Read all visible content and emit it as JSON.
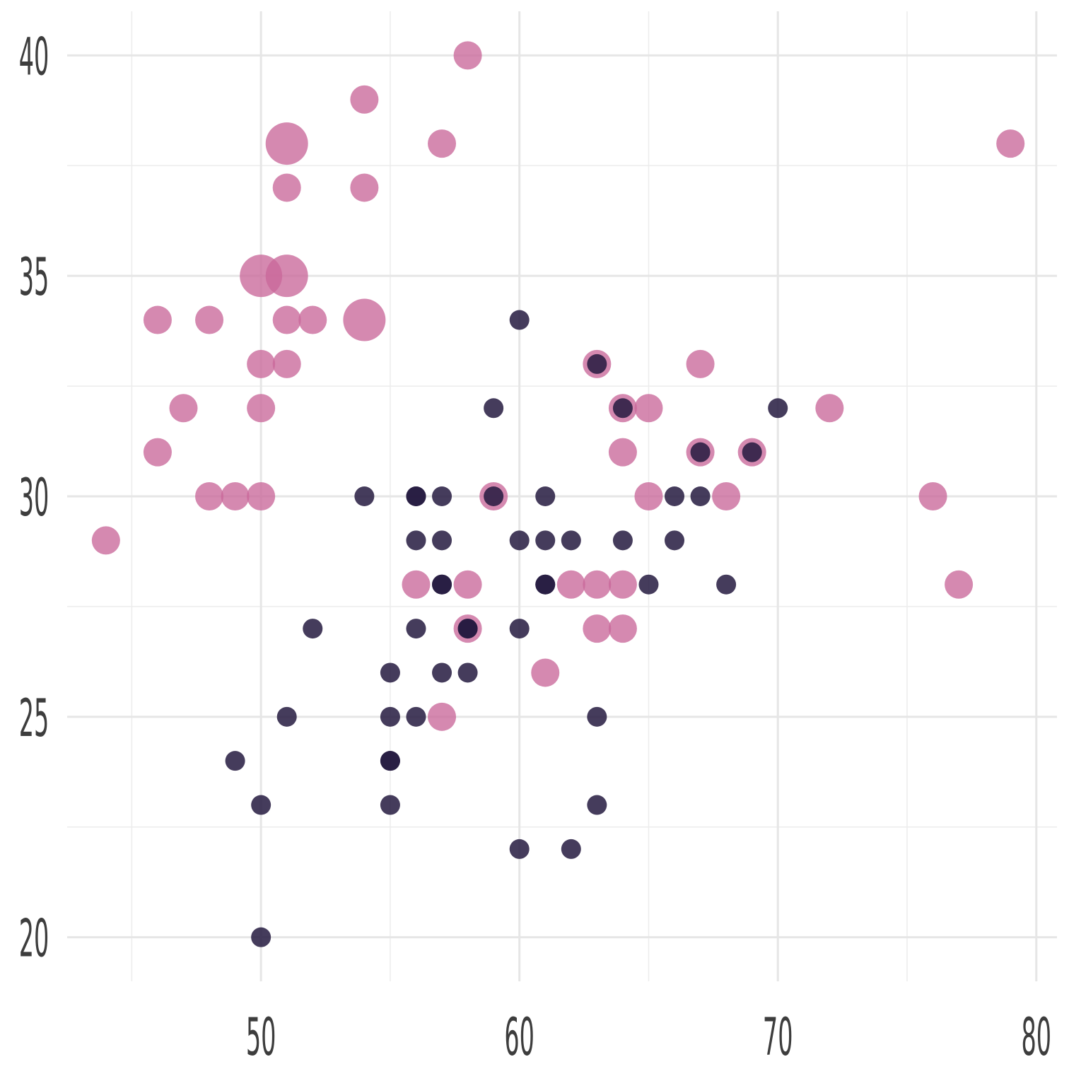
{
  "chart_data": {
    "type": "scatter",
    "title": "",
    "xlabel": "",
    "ylabel": "",
    "xlim": [
      42.5,
      80.8
    ],
    "ylim": [
      19,
      41
    ],
    "x_ticks": [
      50,
      60,
      70,
      80
    ],
    "y_ticks": [
      20,
      25,
      30,
      35,
      40
    ],
    "x_tick_labels": [
      "50",
      "60",
      "70",
      "80"
    ],
    "y_tick_labels": [
      "20",
      "25",
      "30",
      "35",
      "40"
    ],
    "grid": true,
    "legend": "none",
    "colors": {
      "pink": "#c9689a",
      "dark": "#251a40"
    },
    "series": [
      {
        "color": "#c9689a",
        "size_units": "relative",
        "points": [
          [
            58,
            40,
            1
          ],
          [
            54,
            39,
            1
          ],
          [
            51,
            38,
            1.5
          ],
          [
            57,
            38,
            1
          ],
          [
            79,
            38,
            1
          ],
          [
            51,
            37,
            1
          ],
          [
            54,
            37,
            1
          ],
          [
            50,
            35,
            1.5
          ],
          [
            51,
            35,
            1.5
          ],
          [
            46,
            34,
            1
          ],
          [
            48,
            34,
            1
          ],
          [
            51,
            34,
            1
          ],
          [
            52,
            34,
            1
          ],
          [
            54,
            34,
            1.5
          ],
          [
            50,
            33,
            1
          ],
          [
            51,
            33,
            1
          ],
          [
            63,
            33,
            1
          ],
          [
            67,
            33,
            1
          ],
          [
            47,
            32,
            1
          ],
          [
            50,
            32,
            1
          ],
          [
            64,
            32,
            1
          ],
          [
            65,
            32,
            1
          ],
          [
            72,
            32,
            1
          ],
          [
            46,
            31,
            1
          ],
          [
            64,
            31,
            1
          ],
          [
            67,
            31,
            1
          ],
          [
            69,
            31,
            1
          ],
          [
            48,
            30,
            1
          ],
          [
            49,
            30,
            1
          ],
          [
            50,
            30,
            1
          ],
          [
            59,
            30,
            1
          ],
          [
            65,
            30,
            1
          ],
          [
            68,
            30,
            1
          ],
          [
            76,
            30,
            1
          ],
          [
            44,
            29,
            1
          ],
          [
            56,
            28,
            1
          ],
          [
            58,
            28,
            1
          ],
          [
            62,
            28,
            1
          ],
          [
            63,
            28,
            1
          ],
          [
            64,
            28,
            1
          ],
          [
            77,
            28,
            1
          ],
          [
            58,
            27,
            1
          ],
          [
            63,
            27,
            1
          ],
          [
            64,
            27,
            1
          ],
          [
            61,
            26,
            1
          ],
          [
            57,
            25,
            1
          ]
        ]
      },
      {
        "color": "#251a40",
        "size_units": "relative",
        "points": [
          [
            60,
            34,
            0.7
          ],
          [
            59,
            32,
            0.7
          ],
          [
            70,
            32,
            0.7
          ],
          [
            54,
            30,
            0.7
          ],
          [
            56,
            30,
            0.7
          ],
          [
            56,
            30,
            0.7
          ],
          [
            57,
            30,
            0.7
          ],
          [
            59,
            30,
            0.7
          ],
          [
            61,
            30,
            0.7
          ],
          [
            66,
            30,
            0.7
          ],
          [
            67,
            30,
            0.7
          ],
          [
            56,
            29,
            0.7
          ],
          [
            57,
            29,
            0.7
          ],
          [
            60,
            29,
            0.7
          ],
          [
            61,
            29,
            0.7
          ],
          [
            62,
            29,
            0.7
          ],
          [
            64,
            29,
            0.7
          ],
          [
            66,
            29,
            0.7
          ],
          [
            57,
            28,
            0.7
          ],
          [
            57,
            28,
            0.7
          ],
          [
            61,
            28,
            0.7
          ],
          [
            61,
            28,
            0.7
          ],
          [
            65,
            28,
            0.7
          ],
          [
            68,
            28,
            0.7
          ],
          [
            52,
            27,
            0.7
          ],
          [
            56,
            27,
            0.7
          ],
          [
            58,
            27,
            0.7
          ],
          [
            60,
            27,
            0.7
          ],
          [
            55,
            26,
            0.7
          ],
          [
            57,
            26,
            0.7
          ],
          [
            58,
            26,
            0.7
          ],
          [
            51,
            25,
            0.7
          ],
          [
            55,
            25,
            0.7
          ],
          [
            56,
            25,
            0.7
          ],
          [
            63,
            25,
            0.7
          ],
          [
            49,
            24,
            0.7
          ],
          [
            55,
            24,
            0.7
          ],
          [
            55,
            24,
            0.7
          ],
          [
            50,
            23,
            0.7
          ],
          [
            55,
            23,
            0.7
          ],
          [
            63,
            23,
            0.7
          ],
          [
            60,
            22,
            0.7
          ],
          [
            62,
            22,
            0.7
          ],
          [
            50,
            20,
            0.7
          ],
          [
            63,
            33,
            0.7
          ],
          [
            64,
            32,
            0.7
          ],
          [
            67,
            31,
            0.7
          ],
          [
            69,
            31,
            0.7
          ],
          [
            58,
            27,
            0.7
          ]
        ]
      }
    ]
  }
}
